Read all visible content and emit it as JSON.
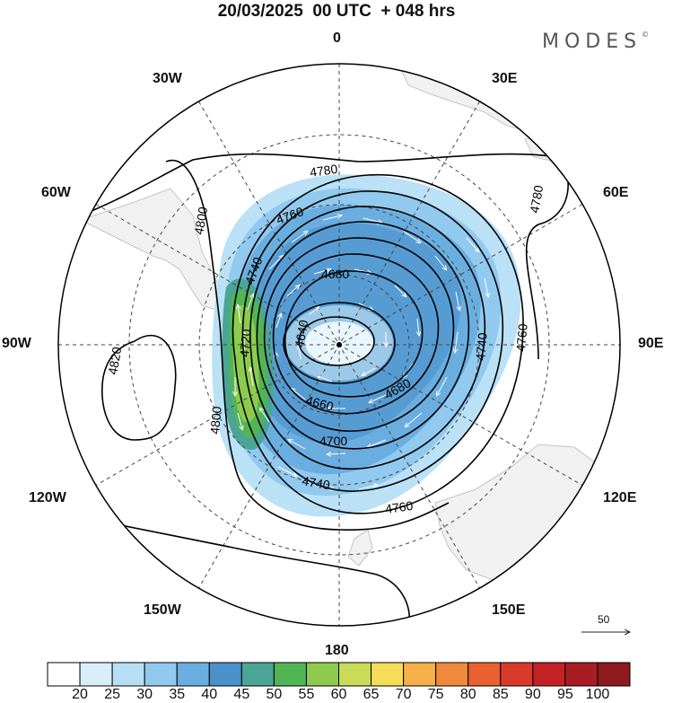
{
  "title": "20/03/2025  00 UTC  + 048 hrs",
  "brand": "MODES",
  "brand_mark": "©",
  "longitude_labels": {
    "top": "0",
    "top_left": "30W",
    "top_right": "30E",
    "left_upper": "60W",
    "right_upper": "60E",
    "left": "90W",
    "right": "90E",
    "left_lower": "120W",
    "right_lower": "120E",
    "bottom_left": "150W",
    "bottom_right": "150E",
    "bottom": "180"
  },
  "contour_labels": [
    "4780",
    "4760",
    "4740",
    "4680",
    "4640",
    "4720",
    "4660",
    "4700",
    "4740",
    "4760",
    "4680",
    "4740",
    "4760",
    "4780",
    "4800",
    "4820",
    "4800"
  ],
  "vector_reference": "50",
  "colorbar": {
    "ticks": [
      "20",
      "25",
      "30",
      "35",
      "40",
      "45",
      "50",
      "55",
      "60",
      "65",
      "70",
      "75",
      "80",
      "85",
      "90",
      "95",
      "100"
    ],
    "colors": [
      "#ffffff",
      "#d8eefb",
      "#b6dff6",
      "#92c9ee",
      "#6aaee0",
      "#4a90c9",
      "#4aa595",
      "#52b554",
      "#8ccb4e",
      "#c9dc57",
      "#f5dc59",
      "#f5b04a",
      "#ef8a3d",
      "#e8612f",
      "#d93a2b",
      "#c42127",
      "#a81d23",
      "#8d1a1e"
    ]
  }
}
